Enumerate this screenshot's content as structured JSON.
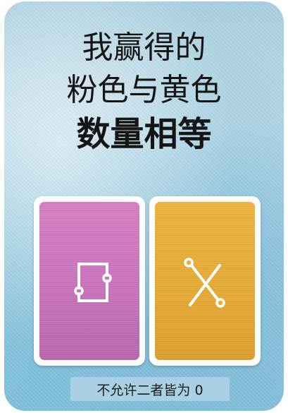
{
  "card": {
    "title_line1": "我赢得的",
    "title_line2": "粉色与黄色",
    "title_line3": "数量相等",
    "rule_text": "不允许二者皆为 0"
  },
  "mini_cards": [
    {
      "color_name": "pink",
      "color": "#d17cc3",
      "icon": "square-connector-icon"
    },
    {
      "color_name": "yellow",
      "color": "#eab03a",
      "icon": "cross-connector-icon"
    }
  ]
}
